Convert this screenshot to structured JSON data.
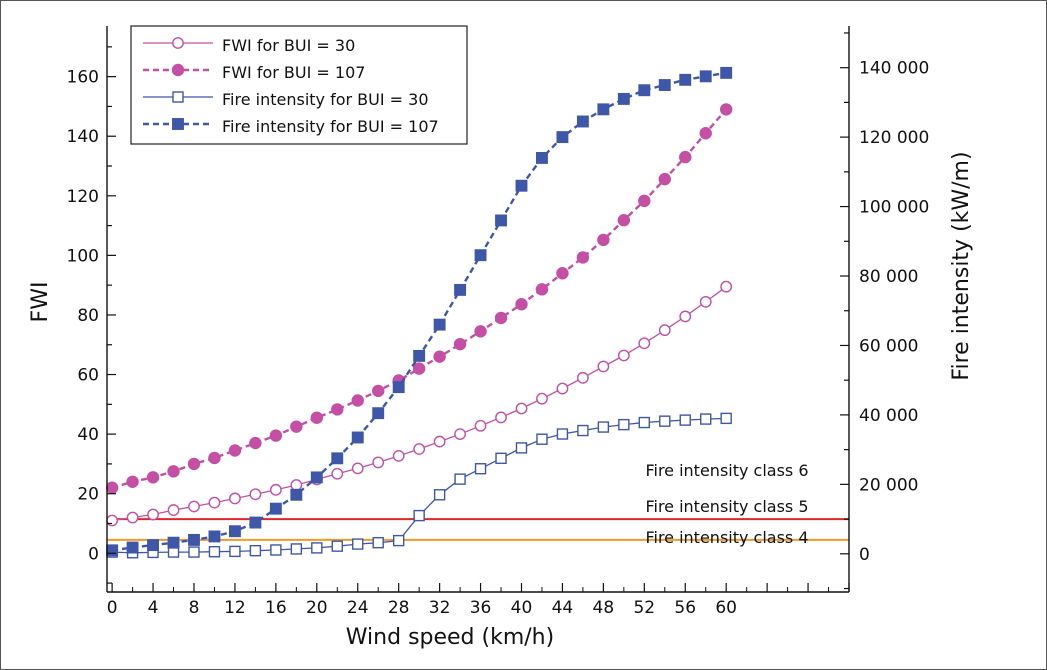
{
  "chart_data": {
    "type": "line",
    "xlabel": "Wind speed (km/h)",
    "ylabel": "FWI",
    "y2label": "Fire intensity (kW/m)",
    "xlim": [
      -0.5,
      72
    ],
    "xticks": [
      0,
      4,
      8,
      12,
      16,
      20,
      24,
      28,
      32,
      36,
      40,
      44,
      48,
      52,
      56,
      60
    ],
    "ylim": [
      -13,
      177
    ],
    "yticks": [
      0,
      20,
      40,
      60,
      80,
      100,
      120,
      140,
      160
    ],
    "y2lim": [
      -11000,
      152000
    ],
    "y2ticks": [
      0,
      20000,
      40000,
      60000,
      80000,
      100000,
      120000,
      140000
    ],
    "y2ticklabels": [
      "0",
      "20 000",
      "40 000",
      "60 000",
      "80 000",
      "100 000",
      "120 000",
      "140 000"
    ],
    "x": [
      0,
      2,
      4,
      6,
      8,
      10,
      12,
      14,
      16,
      18,
      20,
      22,
      24,
      26,
      28,
      30,
      32,
      34,
      36,
      38,
      40,
      42,
      44,
      46,
      48,
      50,
      52,
      54,
      56,
      58,
      60
    ],
    "series": [
      {
        "name": "FWI for BUI = 30",
        "axis": "left",
        "color": "#c44fa4",
        "line": "solid",
        "marker": "circle-open",
        "values": [
          11.0,
          12.0,
          13.0,
          14.5,
          15.7,
          17.0,
          18.4,
          19.8,
          21.3,
          22.9,
          24.8,
          26.7,
          28.5,
          30.5,
          32.7,
          35.0,
          37.5,
          40.0,
          42.8,
          45.6,
          48.6,
          51.9,
          55.3,
          58.9,
          62.7,
          66.4,
          70.5,
          74.9,
          79.5,
          84.4,
          89.5
        ]
      },
      {
        "name": "FWI for BUI = 107",
        "axis": "left",
        "color": "#c44fa4",
        "line": "dashed",
        "marker": "circle-filled",
        "values": [
          22.0,
          24.0,
          25.5,
          27.5,
          30.0,
          32.0,
          34.5,
          37.0,
          39.5,
          42.5,
          45.5,
          48.3,
          51.3,
          54.5,
          58.0,
          62.0,
          66.0,
          70.2,
          74.5,
          79.0,
          83.6,
          88.6,
          94.0,
          99.3,
          105.2,
          111.8,
          118.3,
          125.6,
          133.0,
          141.0,
          149.0
        ]
      },
      {
        "name": "Fire intensity for BUI = 30",
        "axis": "right",
        "color": "#3f57a8",
        "line": "solid",
        "marker": "square-open",
        "values": [
          500,
          300,
          400,
          500,
          500,
          600,
          700,
          900,
          1100,
          1400,
          1700,
          2200,
          2800,
          3200,
          3800,
          11000,
          17000,
          21500,
          24500,
          27500,
          30500,
          33000,
          34500,
          35500,
          36500,
          37200,
          37800,
          38200,
          38500,
          38800,
          39000
        ]
      },
      {
        "name": "Fire intensity for BUI = 107",
        "axis": "right",
        "color": "#3f57a8",
        "line": "dashed",
        "marker": "square-filled",
        "values": [
          1000,
          1800,
          2500,
          3200,
          4000,
          5000,
          6500,
          9000,
          13000,
          17000,
          22000,
          27500,
          33500,
          40500,
          48000,
          57000,
          66000,
          76000,
          86000,
          96000,
          106000,
          114000,
          120000,
          124500,
          128000,
          131000,
          133500,
          135000,
          136500,
          137500,
          138500
        ]
      }
    ],
    "reference_lines": [
      {
        "value": 10000,
        "axis": "right",
        "color": "#e3242b"
      },
      {
        "value": 4000,
        "axis": "right",
        "color": "#f39a26"
      }
    ],
    "annotations": [
      "Fire intensity class 6",
      "Fire intensity class 5",
      "Fire intensity class 4"
    ],
    "legend_position": "top-left",
    "grid": false
  }
}
